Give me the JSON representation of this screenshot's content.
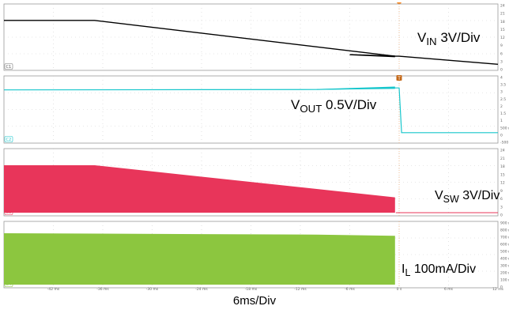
{
  "chart_data": {
    "type": "line",
    "title": "",
    "xlabel": "6ms/Div",
    "x_unit": "ms",
    "x_range": [
      -48,
      12
    ],
    "x_ticks": [
      "-42 ms",
      "-36 ms",
      "-30 ms",
      "-24 ms",
      "-18 ms",
      "-12 ms",
      "-6 ms",
      "0 s",
      "6 ms",
      "12 ms"
    ],
    "trigger_marker": "T",
    "grid": true,
    "channels": [
      {
        "id": "C1",
        "label_main": "V",
        "label_sub": "IN",
        "label_scale": " 3V/Div",
        "color": "#000000",
        "axis_ticks": [
          "24",
          "21",
          "18",
          "15",
          "12",
          "9",
          "6",
          "3",
          "0"
        ],
        "y_range": [
          0,
          24
        ],
        "points": [
          [
            -48,
            19.2
          ],
          [
            -37,
            19.2
          ],
          [
            -0.5,
            4.5
          ],
          [
            0,
            4.5
          ],
          [
            12,
            1.2
          ]
        ],
        "style": "line"
      },
      {
        "id": "C2",
        "label_main": "V",
        "label_sub": "OUT",
        "label_scale": " 0.5V/Div",
        "color": "#17c6cc",
        "axis_ticks": [
          "4",
          "3.5",
          "3",
          "2.5",
          "2",
          "1.5",
          "1",
          "500 m",
          "0",
          "-500 m"
        ],
        "y_range": [
          -0.5,
          4
        ],
        "points": [
          [
            -48,
            3.3
          ],
          [
            -10,
            3.33
          ],
          [
            -0.5,
            3.45
          ],
          [
            0,
            3.45
          ],
          [
            0.3,
            0.05
          ],
          [
            12,
            0.05
          ]
        ],
        "style": "line"
      },
      {
        "id": "C3",
        "label_main": "V",
        "label_sub": "SW",
        "label_scale": " 3V/Div",
        "color": "#e8355a",
        "axis_ticks": [
          "24",
          "21",
          "18",
          "15",
          "12",
          "9",
          "6",
          "3",
          "0"
        ],
        "y_range": [
          0,
          24
        ],
        "points": [
          [
            -48,
            19.2
          ],
          [
            -37,
            19.2
          ],
          [
            -0.5,
            6.2
          ]
        ],
        "style": "envelope"
      },
      {
        "id": "C4",
        "label_main": "I",
        "label_sub": "L",
        "label_scale": " 100mA/Div",
        "color": "#8cc63f",
        "axis_ticks": [
          "900 m",
          "800 m",
          "700 m",
          "600 m",
          "500 m",
          "400 m",
          "300 m",
          "200 m",
          "100 m",
          "0"
        ],
        "y_range": [
          0,
          0.9
        ],
        "points": [
          [
            -48,
            0.79
          ],
          [
            -10,
            0.77
          ],
          [
            -0.5,
            0.75
          ]
        ],
        "style": "envelope"
      }
    ]
  }
}
